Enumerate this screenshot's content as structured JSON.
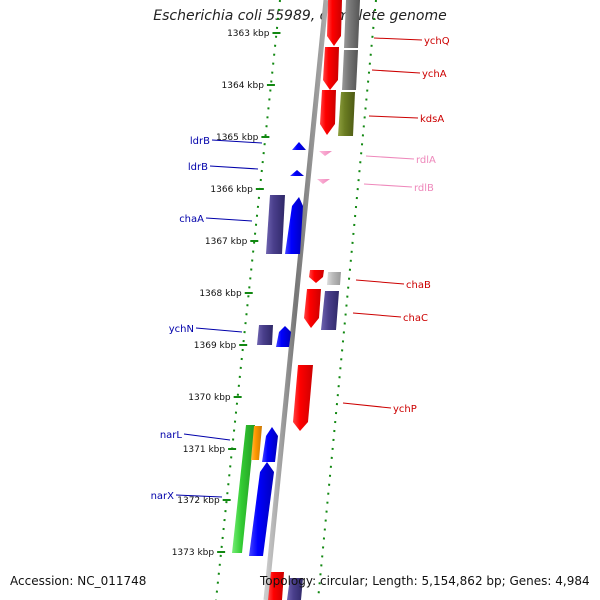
{
  "title": "Escherichia coli 55989, complete genome",
  "footer": {
    "accession": "Accession: NC_011748",
    "summary": "Topology: circular; Length: 5,154,862 bp; Genes: 4,984"
  },
  "ticks": [
    "1363 kbp",
    "1364 kbp",
    "1365 kbp",
    "1366 kbp",
    "1367 kbp",
    "1368 kbp",
    "1369 kbp",
    "1370 kbp",
    "1371 kbp",
    "1372 kbp",
    "1373 kbp"
  ],
  "genes": [
    {
      "label": "ychQ",
      "color": "#cc0000"
    },
    {
      "label": "ychA",
      "color": "#cc0000"
    },
    {
      "label": "kdsA",
      "color": "#cc0000"
    },
    {
      "label": "ldrB",
      "color": "#0000aa"
    },
    {
      "label": "rdlA",
      "color": "#ee88bb"
    },
    {
      "label": "ldrB",
      "color": "#0000aa"
    },
    {
      "label": "rdlB",
      "color": "#ee88bb"
    },
    {
      "label": "chaA",
      "color": "#0000aa"
    },
    {
      "label": "chaB",
      "color": "#cc0000"
    },
    {
      "label": "chaC",
      "color": "#cc0000"
    },
    {
      "label": "ychN",
      "color": "#0000aa"
    },
    {
      "label": "ychP",
      "color": "#cc0000"
    },
    {
      "label": "narL",
      "color": "#0000aa"
    },
    {
      "label": "narX",
      "color": "#0000aa"
    }
  ]
}
